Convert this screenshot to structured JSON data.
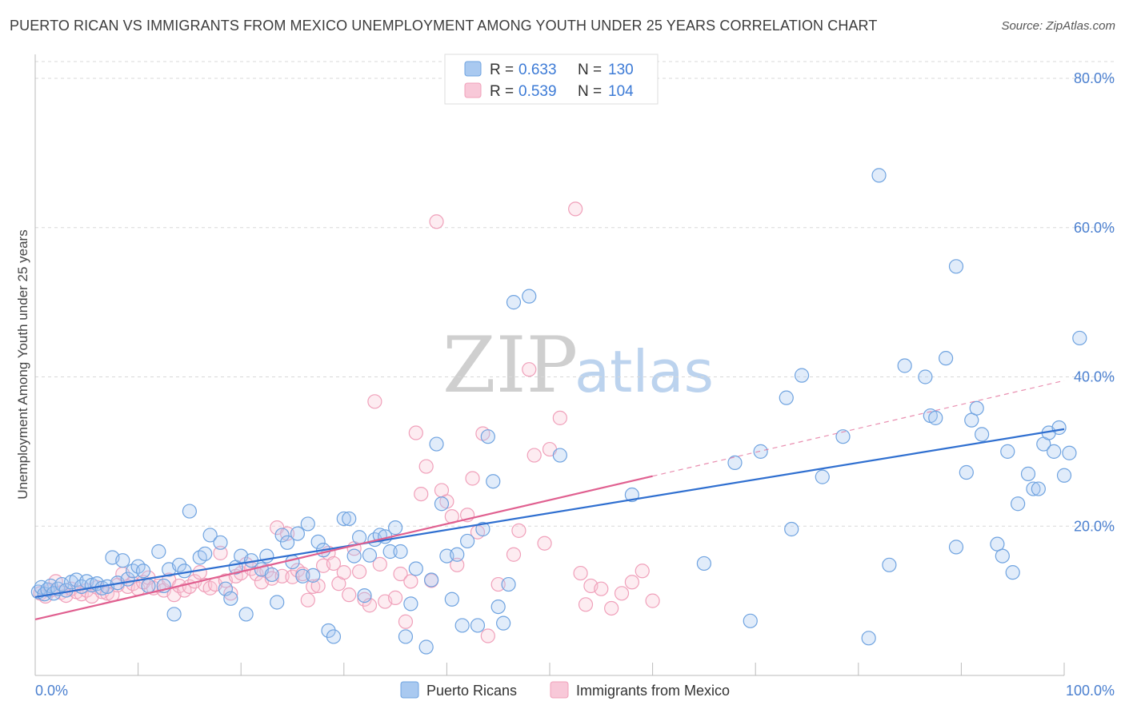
{
  "title": "PUERTO RICAN VS IMMIGRANTS FROM MEXICO UNEMPLOYMENT AMONG YOUTH UNDER 25 YEARS CORRELATION CHART",
  "source": "Source: ZipAtlas.com",
  "watermark": {
    "zip": "ZIP",
    "atlas": "atlas"
  },
  "colors": {
    "blue": "#6fa3e0",
    "blue_line": "#2f6fd0",
    "pink": "#f0a0ba",
    "pink_line": "#e06090",
    "blue_fill": "#a9c9f0",
    "pink_fill": "#f8c8d8"
  },
  "legend": {
    "rows": [
      {
        "r_label": "R = ",
        "r_value": "0.633",
        "n_label": "N = ",
        "n_value": "130"
      },
      {
        "r_label": "R = ",
        "r_value": "0.539",
        "n_label": "N = ",
        "n_value": "104"
      }
    ]
  },
  "bottom_legend": [
    {
      "label": "Puerto Ricans"
    },
    {
      "label": "Immigrants from Mexico"
    }
  ],
  "chart_data": {
    "type": "scatter",
    "title": "PUERTO RICAN VS IMMIGRANTS FROM MEXICO UNEMPLOYMENT AMONG YOUTH UNDER 25 YEARS CORRELATION CHART",
    "xlabel": "",
    "ylabel": "Unemployment Among Youth under 25 years",
    "xlim": [
      0,
      100
    ],
    "ylim": [
      0,
      80
    ],
    "x_tick_labels": [
      "0.0%",
      "100.0%"
    ],
    "y_ticks": [
      20,
      40,
      60,
      80
    ],
    "y_tick_labels": [
      "20.0%",
      "40.0%",
      "60.0%",
      "80.0%"
    ],
    "series": [
      {
        "name": "Puerto Ricans",
        "R": 0.633,
        "N": 130,
        "trend": {
          "x0": 0,
          "y0": 10.5,
          "x1": 100,
          "y1": 33
        },
        "points": [
          [
            0.3,
            11.2
          ],
          [
            0.6,
            11.8
          ],
          [
            0.9,
            10.9
          ],
          [
            1.2,
            11.5
          ],
          [
            1.5,
            12.0
          ],
          [
            1.8,
            11.0
          ],
          [
            2.2,
            11.6
          ],
          [
            2.6,
            12.2
          ],
          [
            3.0,
            11.4
          ],
          [
            3.5,
            12.5
          ],
          [
            4.0,
            12.8
          ],
          [
            4.5,
            11.9
          ],
          [
            5.0,
            12.6
          ],
          [
            5.5,
            12.1
          ],
          [
            6.0,
            12.3
          ],
          [
            6.5,
            11.7
          ],
          [
            7.0,
            11.9
          ],
          [
            7.5,
            15.8
          ],
          [
            8.0,
            12.4
          ],
          [
            8.5,
            15.4
          ],
          [
            9.0,
            12.9
          ],
          [
            9.5,
            14.0
          ],
          [
            10.0,
            14.6
          ],
          [
            10.5,
            14.0
          ],
          [
            11.0,
            12.0
          ],
          [
            12.0,
            16.6
          ],
          [
            12.5,
            12.0
          ],
          [
            13.0,
            14.2
          ],
          [
            13.5,
            8.2
          ],
          [
            14.0,
            14.8
          ],
          [
            14.5,
            14.0
          ],
          [
            15.0,
            22.0
          ],
          [
            16.0,
            15.8
          ],
          [
            16.5,
            16.3
          ],
          [
            17.0,
            18.8
          ],
          [
            18.0,
            17.8
          ],
          [
            18.5,
            11.6
          ],
          [
            19.0,
            10.3
          ],
          [
            19.5,
            14.5
          ],
          [
            20.0,
            16.0
          ],
          [
            20.5,
            8.2
          ],
          [
            21.0,
            15.4
          ],
          [
            22.0,
            14.2
          ],
          [
            22.5,
            16.0
          ],
          [
            23.0,
            13.5
          ],
          [
            23.5,
            9.8
          ],
          [
            24.0,
            18.8
          ],
          [
            24.5,
            17.8
          ],
          [
            25.0,
            15.2
          ],
          [
            25.5,
            19.0
          ],
          [
            26.0,
            13.3
          ],
          [
            26.5,
            20.3
          ],
          [
            27.0,
            13.4
          ],
          [
            27.5,
            17.9
          ],
          [
            28.0,
            16.8
          ],
          [
            28.5,
            6.0
          ],
          [
            29.0,
            5.2
          ],
          [
            30.0,
            21.0
          ],
          [
            30.5,
            21.0
          ],
          [
            31.0,
            16.0
          ],
          [
            31.5,
            18.5
          ],
          [
            32.0,
            10.7
          ],
          [
            32.5,
            16.1
          ],
          [
            33.0,
            18.2
          ],
          [
            33.5,
            18.8
          ],
          [
            34.0,
            18.6
          ],
          [
            34.5,
            16.6
          ],
          [
            35.0,
            19.8
          ],
          [
            35.5,
            16.6
          ],
          [
            36.0,
            5.2
          ],
          [
            36.5,
            9.6
          ],
          [
            37.0,
            14.3
          ],
          [
            38.0,
            3.8
          ],
          [
            38.5,
            12.8
          ],
          [
            39.0,
            31.0
          ],
          [
            39.5,
            23.0
          ],
          [
            40.0,
            16.0
          ],
          [
            40.5,
            10.2
          ],
          [
            41.0,
            16.2
          ],
          [
            41.5,
            6.7
          ],
          [
            42.0,
            18.0
          ],
          [
            43.0,
            6.7
          ],
          [
            43.5,
            19.6
          ],
          [
            44.0,
            32.0
          ],
          [
            44.5,
            26.0
          ],
          [
            45.0,
            9.2
          ],
          [
            45.5,
            7.0
          ],
          [
            46.0,
            12.2
          ],
          [
            46.5,
            50.0
          ],
          [
            48.0,
            50.8
          ],
          [
            51.0,
            29.5
          ],
          [
            58.0,
            24.2
          ],
          [
            65.0,
            15.0
          ],
          [
            68.0,
            28.5
          ],
          [
            69.5,
            7.3
          ],
          [
            70.5,
            30.0
          ],
          [
            73.0,
            37.2
          ],
          [
            73.5,
            19.6
          ],
          [
            74.5,
            40.2
          ],
          [
            76.5,
            26.6
          ],
          [
            78.5,
            32.0
          ],
          [
            81.0,
            5.0
          ],
          [
            82.0,
            67.0
          ],
          [
            83.0,
            14.8
          ],
          [
            84.5,
            41.5
          ],
          [
            86.5,
            40.0
          ],
          [
            87.0,
            34.8
          ],
          [
            87.5,
            34.5
          ],
          [
            88.5,
            42.5
          ],
          [
            89.5,
            17.2
          ],
          [
            89.5,
            54.8
          ],
          [
            90.5,
            27.2
          ],
          [
            91.0,
            34.2
          ],
          [
            91.5,
            35.8
          ],
          [
            92.0,
            32.3
          ],
          [
            93.5,
            17.6
          ],
          [
            94.0,
            16.0
          ],
          [
            94.5,
            30.0
          ],
          [
            95.0,
            13.8
          ],
          [
            95.5,
            23.0
          ],
          [
            96.5,
            27.0
          ],
          [
            97.0,
            25.0
          ],
          [
            97.5,
            25.0
          ],
          [
            98.0,
            31.0
          ],
          [
            98.5,
            32.5
          ],
          [
            99.0,
            30.0
          ],
          [
            99.5,
            33.2
          ],
          [
            100.0,
            26.8
          ],
          [
            100.5,
            29.8
          ],
          [
            101.5,
            45.2
          ]
        ]
      },
      {
        "name": "Immigrants from Mexico",
        "R": 0.539,
        "N": 104,
        "trend": {
          "x0": 0,
          "y0": 7.5,
          "x1": 60,
          "y1": 26.7
        },
        "trend_extension": {
          "x0": 60,
          "y0": 26.7,
          "x1": 100,
          "y1": 39.5
        },
        "points": [
          [
            0.5,
            11.0
          ],
          [
            1.0,
            10.6
          ],
          [
            1.5,
            11.4
          ],
          [
            2.0,
            12.6
          ],
          [
            2.5,
            11.1
          ],
          [
            3.0,
            10.7
          ],
          [
            3.5,
            11.6
          ],
          [
            4.0,
            11.2
          ],
          [
            4.5,
            10.9
          ],
          [
            5.0,
            11.4
          ],
          [
            5.5,
            10.6
          ],
          [
            6.0,
            11.8
          ],
          [
            6.5,
            11.2
          ],
          [
            7.0,
            11.0
          ],
          [
            7.5,
            10.8
          ],
          [
            8.0,
            12.1
          ],
          [
            8.5,
            13.6
          ],
          [
            9.0,
            11.9
          ],
          [
            9.5,
            12.3
          ],
          [
            10.0,
            11.6
          ],
          [
            10.5,
            12.5
          ],
          [
            11.0,
            13.1
          ],
          [
            11.5,
            11.7
          ],
          [
            12.0,
            12.0
          ],
          [
            12.5,
            11.4
          ],
          [
            13.0,
            12.8
          ],
          [
            13.5,
            10.8
          ],
          [
            14.0,
            12.0
          ],
          [
            14.5,
            11.4
          ],
          [
            15.0,
            11.9
          ],
          [
            15.5,
            12.6
          ],
          [
            16.0,
            13.8
          ],
          [
            16.5,
            12.1
          ],
          [
            17.0,
            11.7
          ],
          [
            17.5,
            12.2
          ],
          [
            18.0,
            16.4
          ],
          [
            18.5,
            12.7
          ],
          [
            19.0,
            11.0
          ],
          [
            19.5,
            13.3
          ],
          [
            20.0,
            13.7
          ],
          [
            20.5,
            14.9
          ],
          [
            21.0,
            14.3
          ],
          [
            21.5,
            13.6
          ],
          [
            22.0,
            12.5
          ],
          [
            22.5,
            14.0
          ],
          [
            23.0,
            13.0
          ],
          [
            23.5,
            19.8
          ],
          [
            24.0,
            13.3
          ],
          [
            24.5,
            19.0
          ],
          [
            25.0,
            13.2
          ],
          [
            25.5,
            14.1
          ],
          [
            26.0,
            13.6
          ],
          [
            26.5,
            10.1
          ],
          [
            27.0,
            11.9
          ],
          [
            27.5,
            12.0
          ],
          [
            28.0,
            14.7
          ],
          [
            28.5,
            16.4
          ],
          [
            29.0,
            15.0
          ],
          [
            29.5,
            12.3
          ],
          [
            30.0,
            13.8
          ],
          [
            30.5,
            10.8
          ],
          [
            31.0,
            17.0
          ],
          [
            31.5,
            13.9
          ],
          [
            32.0,
            10.2
          ],
          [
            32.5,
            9.4
          ],
          [
            33.0,
            36.7
          ],
          [
            33.5,
            14.9
          ],
          [
            34.0,
            9.9
          ],
          [
            35.0,
            10.4
          ],
          [
            35.5,
            13.6
          ],
          [
            36.0,
            7.2
          ],
          [
            36.5,
            12.6
          ],
          [
            37.0,
            32.5
          ],
          [
            37.5,
            24.3
          ],
          [
            38.0,
            28.0
          ],
          [
            38.5,
            12.7
          ],
          [
            39.0,
            60.8
          ],
          [
            39.5,
            24.8
          ],
          [
            40.0,
            23.3
          ],
          [
            40.5,
            21.3
          ],
          [
            41.0,
            14.8
          ],
          [
            42.0,
            21.5
          ],
          [
            42.5,
            26.4
          ],
          [
            43.0,
            19.2
          ],
          [
            43.5,
            32.4
          ],
          [
            44.0,
            5.3
          ],
          [
            45.0,
            12.2
          ],
          [
            46.5,
            16.2
          ],
          [
            47.0,
            19.4
          ],
          [
            48.0,
            41.0
          ],
          [
            48.5,
            29.5
          ],
          [
            49.5,
            17.7
          ],
          [
            50.0,
            30.3
          ],
          [
            51.0,
            34.5
          ],
          [
            52.5,
            62.5
          ],
          [
            53.0,
            13.7
          ],
          [
            53.5,
            9.5
          ],
          [
            54.0,
            12.0
          ],
          [
            55.0,
            11.6
          ],
          [
            56.0,
            9.0
          ],
          [
            57.0,
            11.0
          ],
          [
            58.0,
            12.5
          ],
          [
            59.0,
            14.0
          ],
          [
            60.0,
            10.0
          ]
        ]
      }
    ]
  }
}
